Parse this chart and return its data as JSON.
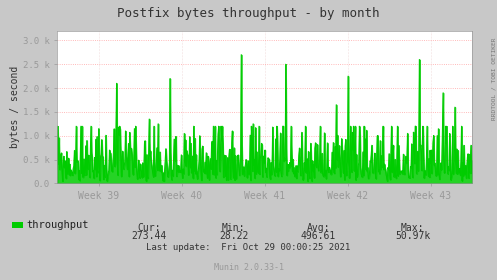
{
  "title": "Postfix bytes throughput - by month",
  "ylabel": "bytes / second",
  "right_label": "RRDTOOL / TOBI OETIKER",
  "x_tick_labels": [
    "Week 39",
    "Week 40",
    "Week 41",
    "Week 42",
    "Week 43"
  ],
  "y_ticks": [
    0.0,
    500,
    1000,
    1500,
    2000,
    2500,
    3000
  ],
  "y_tick_labels": [
    "0.0",
    "0.5 k",
    "1.0 k",
    "1.5 k",
    "2.0 k",
    "2.5 k",
    "3.0 k"
  ],
  "ylim": [
    0,
    3200
  ],
  "legend_label": "throughput",
  "legend_color": "#00cc00",
  "cur": "273.44",
  "min_val": "28.22",
  "avg": "496.61",
  "max_val": "50.97k",
  "last_update": "Last update:  Fri Oct 29 00:00:25 2021",
  "munin_version": "Munin 2.0.33-1",
  "bg_color": "#c8c8c8",
  "plot_bg_color": "#ffffff",
  "grid_color_h": "#ff9999",
  "grid_color_v": "#ddaaaa",
  "line_color": "#00cc00",
  "title_color": "#333333",
  "axis_color": "#333333",
  "num_points": 700,
  "seed": 99
}
